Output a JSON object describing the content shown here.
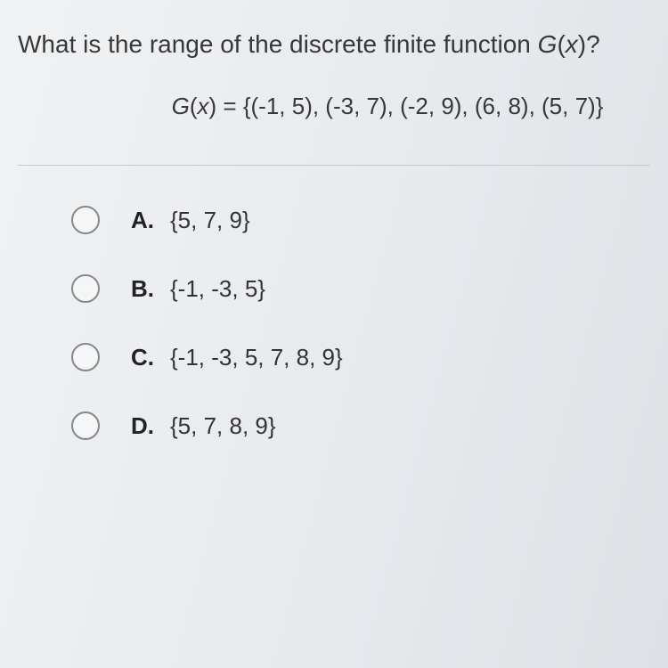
{
  "question": {
    "prefix": "What is the range of the discrete finite function ",
    "func_name": "G",
    "func_var": "x",
    "suffix": "?"
  },
  "function_def": {
    "lhs_func": "G",
    "lhs_var": "x",
    "eq": " = ",
    "rhs": "{(-1, 5), (-3, 7), (-2, 9), (6, 8), (5, 7)}"
  },
  "options": [
    {
      "letter": "A.",
      "value": "{5, 7, 9}"
    },
    {
      "letter": "B.",
      "value": "{-1, -3, 5}"
    },
    {
      "letter": "C.",
      "value": "{-1, -3, 5, 7, 8, 9}"
    },
    {
      "letter": "D.",
      "value": "{5, 7, 8, 9}"
    }
  ],
  "colors": {
    "text": "#383838",
    "radio_border": "#888888",
    "divider": "#c5c8cb"
  }
}
